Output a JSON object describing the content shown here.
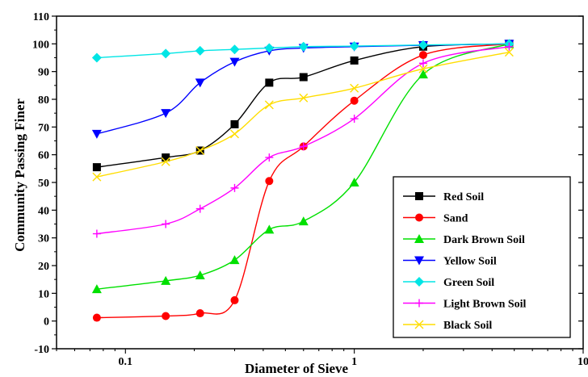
{
  "chart_data": {
    "type": "line",
    "xscale": "log",
    "xlim": [
      0.05,
      10
    ],
    "ylim": [
      -10,
      110
    ],
    "xlabel": "Diameter of Sieve",
    "ylabel": "Community Passing Finer",
    "x_ticks": [
      {
        "value": 0.1,
        "label": "0.1"
      },
      {
        "value": 1,
        "label": "1"
      },
      {
        "value": 10,
        "label": "10"
      }
    ],
    "y_ticks": [
      -10,
      0,
      10,
      20,
      30,
      40,
      50,
      60,
      70,
      80,
      90,
      100,
      110
    ],
    "grid": false,
    "legend_position": "bottom-right",
    "x": [
      0.075,
      0.15,
      0.212,
      0.3,
      0.425,
      0.6,
      1.0,
      2.0,
      4.75
    ],
    "series": [
      {
        "name": "Red Soil",
        "color": "#000000",
        "marker": "square",
        "values": [
          55.5,
          59,
          61.5,
          71,
          86,
          88,
          94,
          99,
          100
        ]
      },
      {
        "name": "Sand",
        "color": "#ff0000",
        "marker": "circle",
        "values": [
          1.2,
          1.8,
          2.8,
          7.5,
          50.5,
          63,
          79.5,
          96,
          100
        ]
      },
      {
        "name": "Dark Brown Soil",
        "color": "#00e000",
        "marker": "triangle-up",
        "values": [
          11.5,
          14.5,
          16.5,
          22,
          33,
          36,
          50,
          89,
          100
        ]
      },
      {
        "name": "Yellow Soil",
        "color": "#0000ff",
        "marker": "triangle-down",
        "values": [
          67.5,
          75,
          86,
          93.5,
          97.5,
          98.5,
          99,
          99.5,
          100
        ]
      },
      {
        "name": "Green Soil",
        "color": "#00e5e5",
        "marker": "diamond",
        "values": [
          95,
          96.5,
          97.5,
          98,
          98.5,
          99,
          99.2,
          99.6,
          100
        ]
      },
      {
        "name": "Light Brown Soil",
        "color": "#ff00ff",
        "marker": "plus",
        "values": [
          31.5,
          35,
          40.5,
          48,
          59,
          63,
          73,
          93,
          99
        ]
      },
      {
        "name": "Black Soil",
        "color": "#ffdd00",
        "marker": "x",
        "values": [
          52,
          57.5,
          61.5,
          67.5,
          78,
          80.5,
          84,
          91,
          97
        ]
      }
    ]
  }
}
